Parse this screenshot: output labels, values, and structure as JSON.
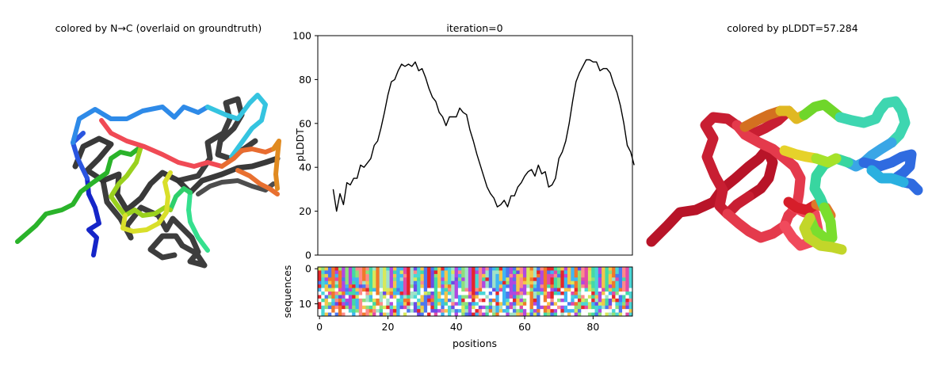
{
  "panels": {
    "left_title": "colored by N→C (overlaid on groundtruth)",
    "right_title": "colored by pLDDT=57.284"
  },
  "chart_data": [
    {
      "type": "line",
      "title": "iteration=0",
      "xlabel": "",
      "ylabel": "pLDDT",
      "xlim": [
        -0.5,
        91.5
      ],
      "ylim": [
        0,
        100
      ],
      "x_ticks": [],
      "y_ticks": [
        0,
        20,
        40,
        60,
        80,
        100
      ],
      "grid": false,
      "series": [
        {
          "x_start": 4,
          "values": [
            30,
            20,
            28,
            23,
            33,
            32,
            35,
            35,
            41,
            40,
            42,
            44,
            50,
            52,
            58,
            65,
            73,
            79,
            80,
            84,
            87,
            86,
            87,
            86,
            88,
            84,
            85,
            81,
            76,
            72,
            70,
            65,
            63,
            59,
            63,
            63,
            63,
            67,
            65,
            64,
            57,
            52,
            46,
            41,
            36,
            31,
            28,
            26,
            22,
            23,
            25,
            22,
            27,
            27,
            31,
            33,
            36,
            38,
            39,
            36,
            41,
            37,
            38,
            31,
            32,
            35,
            44,
            47,
            52,
            60,
            70,
            79,
            83,
            86,
            89,
            89,
            88,
            88,
            84,
            85,
            85,
            83,
            78,
            74,
            68,
            60,
            50,
            47,
            41
          ]
        }
      ]
    },
    {
      "type": "heatmap",
      "title": "",
      "xlabel": "positions",
      "ylabel": "sequences",
      "xlim": [
        -0.5,
        91.5
      ],
      "ylim": [
        13.5,
        -0.5
      ],
      "x_ticks": [
        0,
        20,
        40,
        60,
        80
      ],
      "y_ticks": [
        0,
        10
      ],
      "rows": 14,
      "columns": 92
    }
  ]
}
